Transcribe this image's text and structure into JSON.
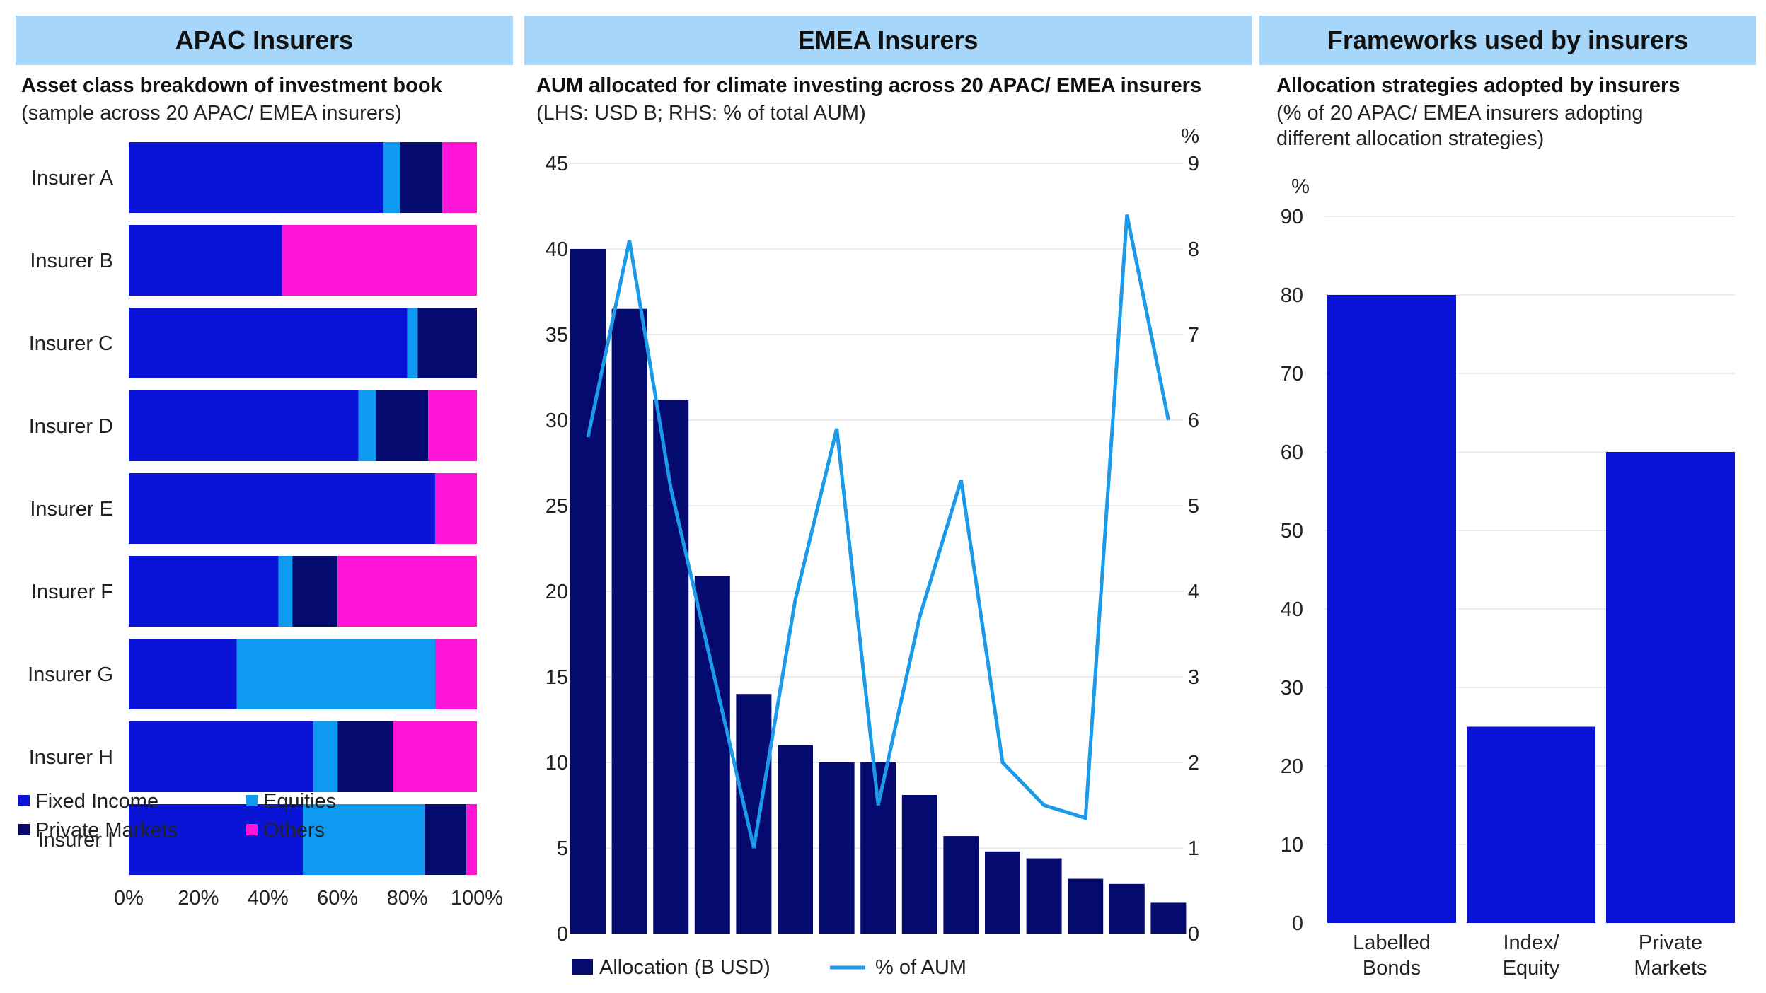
{
  "colors": {
    "fixed_income": "#0a14d6",
    "equities": "#0d9af0",
    "private_markets": "#050a6e",
    "others": "#ff14d8",
    "aum_bar": "#050a6e",
    "aum_line": "#1a9ae8",
    "strategy_bar": "#0a14d6",
    "header_bg": "#a6d7fb"
  },
  "panels": {
    "apac": {
      "header": "APAC Insurers",
      "title": "Asset class breakdown of investment book",
      "subtitle": "(sample across 20 APAC/ EMEA insurers)"
    },
    "emea": {
      "header": "EMEA Insurers",
      "title": "AUM allocated for climate investing across 20 APAC/ EMEA insurers",
      "subtitle": "(LHS: USD B; RHS: % of total AUM)"
    },
    "frameworks": {
      "header": "Frameworks used by insurers",
      "title": "Allocation strategies adopted by insurers",
      "subtitle_line1": "(% of 20 APAC/ EMEA insurers adopting",
      "subtitle_line2": "different allocation strategies)"
    }
  },
  "chart_data": [
    {
      "id": "asset_class",
      "type": "bar",
      "orientation": "horizontal",
      "stacked": true,
      "categories": [
        "Insurer A",
        "Insurer B",
        "Insurer C",
        "Insurer D",
        "Insurer E",
        "Insurer F",
        "Insurer G",
        "Insurer H",
        "Insurer I"
      ],
      "series": [
        {
          "name": "Fixed Income",
          "values": [
            73,
            44,
            80,
            66,
            88,
            43,
            31,
            53,
            50
          ]
        },
        {
          "name": "Equities",
          "values": [
            5,
            0,
            3,
            5,
            0,
            4,
            57,
            7,
            35
          ]
        },
        {
          "name": "Private Markets",
          "values": [
            12,
            0,
            17,
            15,
            0,
            13,
            0,
            16,
            12
          ]
        },
        {
          "name": "Others",
          "values": [
            10,
            56,
            0,
            14,
            12,
            40,
            12,
            24,
            3
          ]
        }
      ],
      "xlim": [
        0,
        100
      ],
      "xticks": [
        "0%",
        "20%",
        "40%",
        "60%",
        "80%",
        "100%"
      ],
      "legend": [
        "Fixed Income",
        "Equities",
        "Private Markets",
        "Others"
      ],
      "legend_position": "bottom"
    },
    {
      "id": "climate_aum",
      "type": "bar",
      "categories_count": 15,
      "series": [
        {
          "name": "Allocation (B USD)",
          "type": "bar",
          "axis": "left",
          "values": [
            40,
            36.5,
            31.2,
            20.9,
            14,
            11,
            10,
            10,
            8.1,
            5.7,
            4.8,
            4.4,
            3.2,
            2.9,
            1.8
          ]
        },
        {
          "name": "% of AUM",
          "type": "line",
          "axis": "right",
          "values": [
            5.8,
            8.1,
            5.2,
            3.1,
            1,
            3.9,
            5.9,
            1.5,
            3.7,
            5.3,
            2,
            1.5,
            1.35,
            8.4,
            6
          ]
        }
      ],
      "ylim_left": [
        0,
        45
      ],
      "yticks_left": [
        "0",
        "5",
        "10",
        "15",
        "20",
        "25",
        "30",
        "35",
        "40",
        "45"
      ],
      "ylim_right": [
        0,
        9
      ],
      "yticks_right": [
        "0",
        "1",
        "2",
        "3",
        "4",
        "5",
        "6",
        "7",
        "8",
        "9"
      ],
      "yunit_right": "%",
      "legend": [
        "Allocation (B USD)",
        "% of AUM"
      ],
      "legend_position": "bottom"
    },
    {
      "id": "strategies",
      "type": "bar",
      "categories": [
        [
          "Labelled",
          "Bonds"
        ],
        [
          "Index/",
          "Equity"
        ],
        [
          "Private",
          "Markets"
        ]
      ],
      "values": [
        80,
        25,
        60
      ],
      "ylim": [
        0,
        90
      ],
      "yticks": [
        "0",
        "10",
        "20",
        "30",
        "40",
        "50",
        "60",
        "70",
        "80",
        "90"
      ],
      "yunit": "%"
    }
  ]
}
